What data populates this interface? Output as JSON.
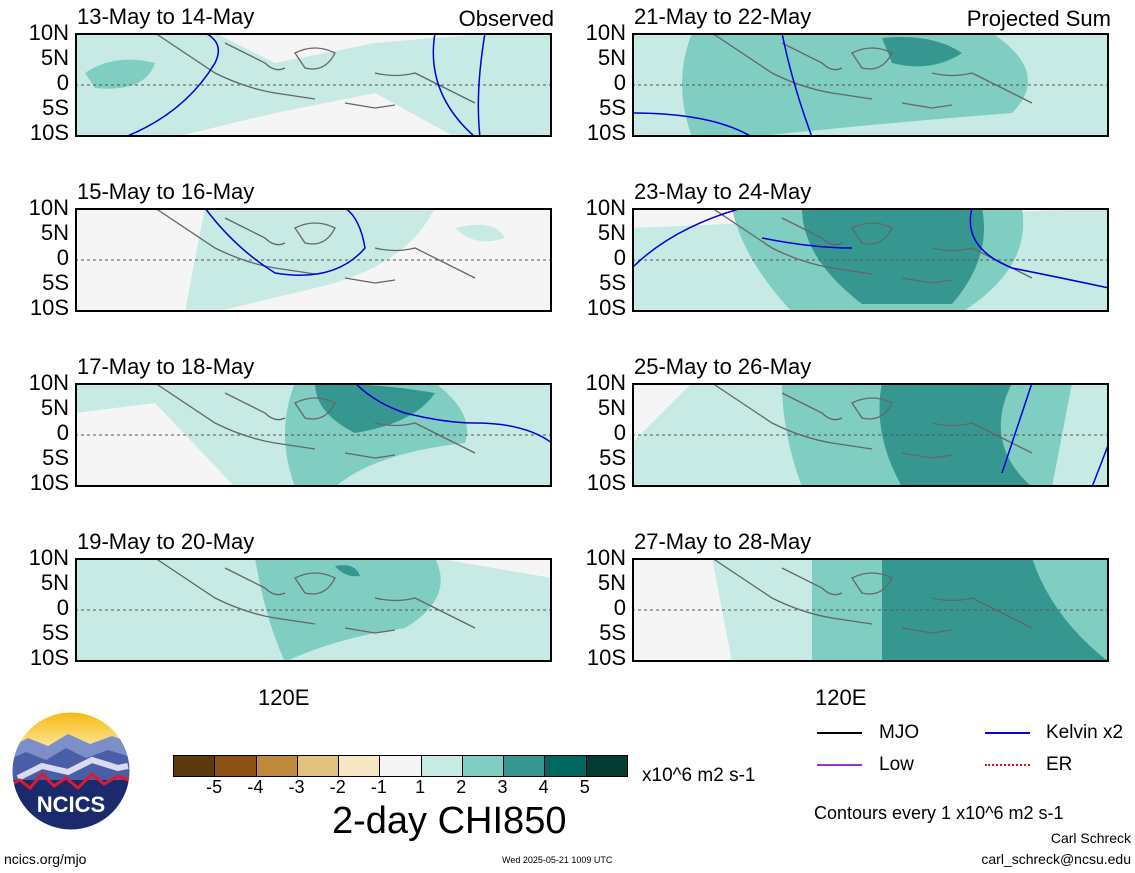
{
  "panels_left_tag": "Observed",
  "panels_right_tag": "Projected Sum",
  "lat_labels": [
    "10N",
    "5N",
    "0",
    "5S",
    "10S"
  ],
  "lon_label": "120E",
  "panels": [
    {
      "title": "13-May to 14-May",
      "tag": "Observed"
    },
    {
      "title": "21-May to 22-May",
      "tag": "Projected Sum"
    },
    {
      "title": "15-May to 16-May",
      "tag": ""
    },
    {
      "title": "23-May to 24-May",
      "tag": ""
    },
    {
      "title": "17-May to 18-May",
      "tag": ""
    },
    {
      "title": "25-May to 26-May",
      "tag": ""
    },
    {
      "title": "19-May to 20-May",
      "tag": ""
    },
    {
      "title": "27-May to 28-May",
      "tag": ""
    }
  ],
  "colorbar": {
    "colors": [
      "#5b3a0e",
      "#8c5214",
      "#c08a3c",
      "#dfc27d",
      "#f6e8c3",
      "#f5f5f5",
      "#c7eae5",
      "#80cdc1",
      "#35978f",
      "#01665e",
      "#003c30"
    ],
    "ticks": [
      "-5",
      "-4",
      "-3",
      "-2",
      "-1",
      "1",
      "2",
      "3",
      "4",
      "5"
    ],
    "units": "x10^6 m2 s-1"
  },
  "title": "2-day CHI850",
  "legend": [
    {
      "label": "MJO",
      "color": "#000000"
    },
    {
      "label": "Kelvin x2",
      "color": "#0000dd"
    },
    {
      "label": "Low",
      "color": "#9933cc"
    },
    {
      "label": "ER",
      "color": "#dd1111"
    }
  ],
  "contours_note": "Contours every 1 x10^6 m2 s-1",
  "author": "Carl Schreck",
  "email": "carl_schreck@ncsu.edu",
  "website": "ncics.org/mjo",
  "timestamp": "Wed 2025-05-21 1009 UTC",
  "logo_text": "NCICS"
}
